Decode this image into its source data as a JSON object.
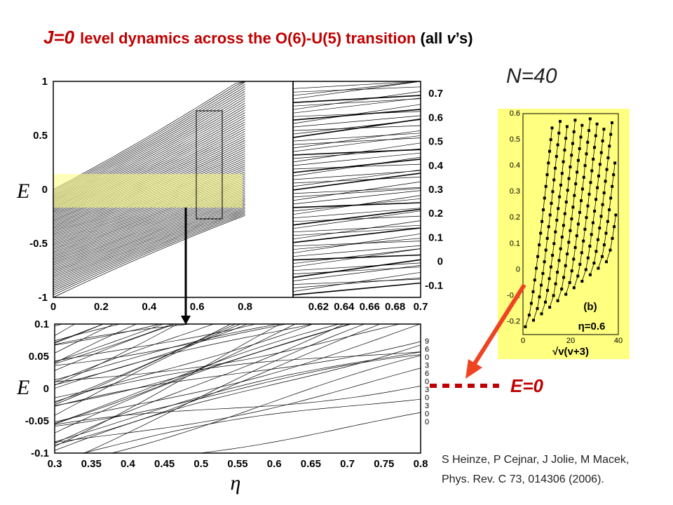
{
  "title": {
    "j_part": "J=0",
    "main": "level dynamics across the O(6)-U(5) transition",
    "tail_prefix": "(all ",
    "tail_italic": "v",
    "tail_suffix": "’s)"
  },
  "n_label": "N=40",
  "e0_label": "E=0",
  "citation": {
    "line1": "S Heinze, P Cejnar, J Jolie, M Macek,",
    "line2": "Phys. Rev. C 73, 014306 (2006)."
  },
  "colors": {
    "accent": "#c00000",
    "highlight": "#ffff80",
    "arrow": "#ee4422"
  },
  "chart_data": [
    {
      "id": "main-panel",
      "type": "line",
      "ylabel": "E",
      "xlim": [
        0,
        1
      ],
      "ylim": [
        -1,
        1
      ],
      "x_ticks": [
        "0",
        "0.2",
        "0.4",
        "0.6",
        "0.8"
      ],
      "y_ticks": [
        "1",
        "0.5",
        "0",
        "-0.5",
        "-1"
      ],
      "highlight_region": {
        "x": [
          0,
          0.8
        ],
        "y": [
          -0.2,
          0.15
        ]
      },
      "zoom_box": {
        "x": [
          0.6,
          0.7
        ],
        "y": [
          -0.3,
          0.7
        ]
      }
    },
    {
      "id": "zoom-panel",
      "type": "line",
      "xlim": [
        0.6,
        0.7
      ],
      "ylim": [
        -0.15,
        0.75
      ],
      "x_ticks": [
        "0.62",
        "0.64",
        "0.66",
        "0.68",
        "0.7"
      ],
      "y_ticks": [
        "0.7",
        "0.6",
        "0.5",
        "0.4",
        "0.3",
        "0.2",
        "0.1",
        "0",
        "-0.1"
      ]
    },
    {
      "id": "lower-panel",
      "type": "line",
      "ylabel": "E",
      "xlabel": "η",
      "xlim": [
        0.3,
        0.8
      ],
      "ylim": [
        -0.1,
        0.1
      ],
      "x_ticks": [
        "0.3",
        "0.35",
        "0.4",
        "0.45",
        "0.5",
        "0.55",
        "0.6",
        "0.65",
        "0.7",
        "0.75",
        "0.8"
      ],
      "y_ticks": [
        "0.1",
        "0.05",
        "0",
        "-0.05",
        "-0.1"
      ],
      "right_labels": [
        "9",
        "6",
        "0",
        "3",
        "6",
        "0",
        "3",
        "0",
        "3",
        "0",
        "0"
      ]
    },
    {
      "id": "inset-panel",
      "type": "scatter",
      "panel_label": "(b)",
      "annotation": "η=0.6",
      "xlabel": "√v(v+3)",
      "xlim": [
        0,
        40
      ],
      "ylim": [
        -0.25,
        0.6
      ],
      "x_ticks": [
        "0",
        "20",
        "40"
      ],
      "y_ticks": [
        "0.6",
        "0.5",
        "0.4",
        "0.3",
        "0.2",
        "0.1",
        "0",
        "-0.1",
        "-0.2"
      ]
    }
  ]
}
